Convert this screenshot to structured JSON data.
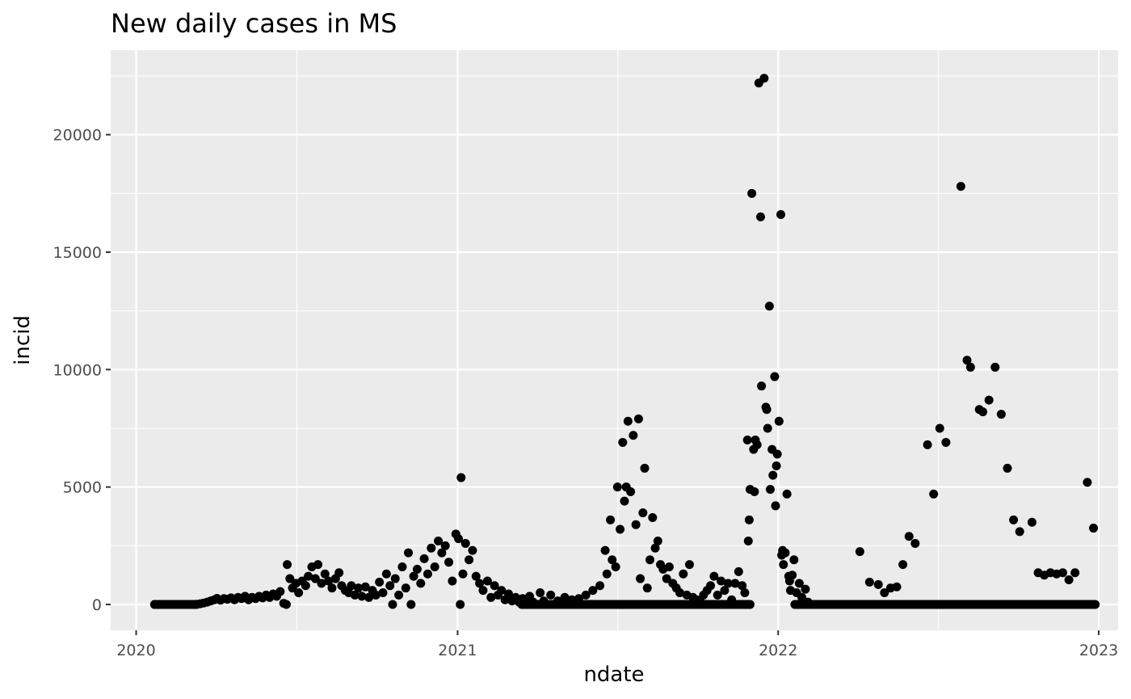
{
  "chart_data": {
    "type": "scatter",
    "title": "New daily cases in MS",
    "xlabel": "ndate",
    "ylabel": "incid",
    "x_axis_type": "date",
    "xlim": [
      "2019-12-03",
      "2023-01-23"
    ],
    "ylim": [
      -1100,
      23600
    ],
    "x_ticks": [
      "2020-01-01",
      "2021-01-01",
      "2022-01-01",
      "2023-01-01"
    ],
    "x_tick_labels": [
      "2020",
      "2021",
      "2022",
      "2023"
    ],
    "y_ticks": [
      0,
      5000,
      10000,
      15000,
      20000
    ],
    "y_tick_labels": [
      "0",
      "5000",
      "10000",
      "15000",
      "20000"
    ],
    "grid": true,
    "background": "#EBEBEB",
    "grid_color": "#FFFFFF",
    "point_color": "#000000",
    "points": [
      [
        "2020-01-22",
        0
      ],
      [
        "2020-01-26",
        0
      ],
      [
        "2020-01-30",
        0
      ],
      [
        "2020-02-03",
        0
      ],
      [
        "2020-02-07",
        0
      ],
      [
        "2020-02-11",
        0
      ],
      [
        "2020-02-15",
        0
      ],
      [
        "2020-02-19",
        0
      ],
      [
        "2020-02-23",
        0
      ],
      [
        "2020-02-27",
        0
      ],
      [
        "2020-03-02",
        0
      ],
      [
        "2020-03-06",
        0
      ],
      [
        "2020-03-10",
        10
      ],
      [
        "2020-03-14",
        30
      ],
      [
        "2020-03-18",
        60
      ],
      [
        "2020-03-22",
        100
      ],
      [
        "2020-03-26",
        150
      ],
      [
        "2020-03-30",
        200
      ],
      [
        "2020-04-02",
        260
      ],
      [
        "2020-04-06",
        180
      ],
      [
        "2020-04-10",
        250
      ],
      [
        "2020-04-14",
        220
      ],
      [
        "2020-04-18",
        280
      ],
      [
        "2020-04-22",
        200
      ],
      [
        "2020-04-26",
        300
      ],
      [
        "2020-04-30",
        250
      ],
      [
        "2020-05-04",
        350
      ],
      [
        "2020-05-08",
        200
      ],
      [
        "2020-05-12",
        300
      ],
      [
        "2020-05-16",
        250
      ],
      [
        "2020-05-20",
        350
      ],
      [
        "2020-05-24",
        280
      ],
      [
        "2020-05-28",
        400
      ],
      [
        "2020-06-01",
        300
      ],
      [
        "2020-06-05",
        450
      ],
      [
        "2020-06-09",
        350
      ],
      [
        "2020-06-13",
        550
      ],
      [
        "2020-06-17",
        50
      ],
      [
        "2020-06-20",
        0
      ],
      [
        "2020-06-21",
        1700
      ],
      [
        "2020-06-24",
        1100
      ],
      [
        "2020-06-27",
        700
      ],
      [
        "2020-07-01",
        900
      ],
      [
        "2020-07-04",
        500
      ],
      [
        "2020-07-08",
        1000
      ],
      [
        "2020-07-12",
        800
      ],
      [
        "2020-07-15",
        1200
      ],
      [
        "2020-07-19",
        1600
      ],
      [
        "2020-07-23",
        1100
      ],
      [
        "2020-07-26",
        1700
      ],
      [
        "2020-07-30",
        900
      ],
      [
        "2020-08-03",
        1300
      ],
      [
        "2020-08-07",
        1000
      ],
      [
        "2020-08-11",
        700
      ],
      [
        "2020-08-15",
        1100
      ],
      [
        "2020-08-19",
        1350
      ],
      [
        "2020-08-22",
        800
      ],
      [
        "2020-08-26",
        600
      ],
      [
        "2020-08-30",
        500
      ],
      [
        "2020-09-02",
        800
      ],
      [
        "2020-09-06",
        400
      ],
      [
        "2020-09-10",
        700
      ],
      [
        "2020-09-14",
        350
      ],
      [
        "2020-09-18",
        750
      ],
      [
        "2020-09-22",
        300
      ],
      [
        "2020-09-26",
        600
      ],
      [
        "2020-09-30",
        400
      ],
      [
        "2020-10-04",
        950
      ],
      [
        "2020-10-08",
        500
      ],
      [
        "2020-10-12",
        1300
      ],
      [
        "2020-10-16",
        800
      ],
      [
        "2020-10-19",
        0
      ],
      [
        "2020-10-22",
        1100
      ],
      [
        "2020-10-26",
        400
      ],
      [
        "2020-10-30",
        1600
      ],
      [
        "2020-11-03",
        700
      ],
      [
        "2020-11-06",
        2200
      ],
      [
        "2020-11-09",
        0
      ],
      [
        "2020-11-12",
        1200
      ],
      [
        "2020-11-16",
        1500
      ],
      [
        "2020-11-20",
        900
      ],
      [
        "2020-11-24",
        1950
      ],
      [
        "2020-11-28",
        1300
      ],
      [
        "2020-12-02",
        2400
      ],
      [
        "2020-12-06",
        1600
      ],
      [
        "2020-12-10",
        2700
      ],
      [
        "2020-12-14",
        2200
      ],
      [
        "2020-12-18",
        2500
      ],
      [
        "2020-12-22",
        1800
      ],
      [
        "2020-12-26",
        1000
      ],
      [
        "2020-12-30",
        3000
      ],
      [
        "2021-01-02",
        2800
      ],
      [
        "2021-01-04",
        0
      ],
      [
        "2021-01-05",
        5400
      ],
      [
        "2021-01-07",
        1300
      ],
      [
        "2021-01-10",
        2600
      ],
      [
        "2021-01-14",
        1900
      ],
      [
        "2021-01-18",
        2300
      ],
      [
        "2021-01-22",
        1200
      ],
      [
        "2021-01-26",
        900
      ],
      [
        "2021-01-30",
        600
      ],
      [
        "2021-02-04",
        1000
      ],
      [
        "2021-02-08",
        300
      ],
      [
        "2021-02-12",
        800
      ],
      [
        "2021-02-16",
        400
      ],
      [
        "2021-02-20",
        600
      ],
      [
        "2021-02-24",
        200
      ],
      [
        "2021-02-28",
        450
      ],
      [
        "2021-03-04",
        150
      ],
      [
        "2021-03-08",
        300
      ],
      [
        "2021-03-12",
        100
      ],
      [
        "2021-03-16",
        250
      ],
      [
        "2021-03-20",
        0
      ],
      [
        "2021-03-24",
        350
      ],
      [
        "2021-03-28",
        100
      ],
      [
        "2021-04-01",
        0
      ],
      [
        "2021-04-05",
        500
      ],
      [
        "2021-04-09",
        150
      ],
      [
        "2021-04-13",
        0
      ],
      [
        "2021-04-17",
        400
      ],
      [
        "2021-04-21",
        0
      ],
      [
        "2021-04-25",
        150
      ],
      [
        "2021-04-29",
        0
      ],
      [
        "2021-05-03",
        300
      ],
      [
        "2021-05-07",
        0
      ],
      [
        "2021-05-11",
        200
      ],
      [
        "2021-05-15",
        0
      ],
      [
        "2021-05-19",
        250
      ],
      [
        "2021-05-23",
        0
      ],
      [
        "2021-05-27",
        400
      ],
      [
        "2021-05-31",
        0
      ],
      [
        "2021-06-04",
        600
      ],
      [
        "2021-06-08",
        0
      ],
      [
        "2021-06-12",
        800
      ],
      [
        "2021-06-16",
        0
      ],
      [
        "2021-06-18",
        2300
      ],
      [
        "2021-06-20",
        1300
      ],
      [
        "2021-06-24",
        3600
      ],
      [
        "2021-06-26",
        1900
      ],
      [
        "2021-06-30",
        1600
      ],
      [
        "2021-07-02",
        5000
      ],
      [
        "2021-07-05",
        3200
      ],
      [
        "2021-07-08",
        6900
      ],
      [
        "2021-07-10",
        4400
      ],
      [
        "2021-07-12",
        5000
      ],
      [
        "2021-07-14",
        7800
      ],
      [
        "2021-07-17",
        4800
      ],
      [
        "2021-07-20",
        7200
      ],
      [
        "2021-07-23",
        3400
      ],
      [
        "2021-07-26",
        7900
      ],
      [
        "2021-07-28",
        1100
      ],
      [
        "2021-07-31",
        3900
      ],
      [
        "2021-08-02",
        5800
      ],
      [
        "2021-08-05",
        700
      ],
      [
        "2021-08-08",
        1900
      ],
      [
        "2021-08-11",
        3700
      ],
      [
        "2021-08-14",
        2400
      ],
      [
        "2021-08-17",
        2700
      ],
      [
        "2021-08-20",
        1700
      ],
      [
        "2021-08-23",
        1500
      ],
      [
        "2021-08-27",
        1100
      ],
      [
        "2021-08-30",
        1600
      ],
      [
        "2021-09-03",
        900
      ],
      [
        "2021-09-07",
        700
      ],
      [
        "2021-09-11",
        500
      ],
      [
        "2021-09-15",
        1300
      ],
      [
        "2021-09-19",
        400
      ],
      [
        "2021-09-22",
        1700
      ],
      [
        "2021-09-26",
        300
      ],
      [
        "2021-09-30",
        200
      ],
      [
        "2021-10-04",
        150
      ],
      [
        "2021-10-08",
        400
      ],
      [
        "2021-10-12",
        600
      ],
      [
        "2021-10-16",
        800
      ],
      [
        "2021-10-20",
        1200
      ],
      [
        "2021-10-24",
        400
      ],
      [
        "2021-10-28",
        1000
      ],
      [
        "2021-11-01",
        600
      ],
      [
        "2021-11-05",
        900
      ],
      [
        "2021-11-09",
        200
      ],
      [
        "2021-11-13",
        900
      ],
      [
        "2021-11-17",
        1400
      ],
      [
        "2021-11-21",
        800
      ],
      [
        "2021-11-24",
        500
      ],
      [
        "2021-11-27",
        7000
      ],
      [
        "2021-11-28",
        2700
      ],
      [
        "2021-11-29",
        3600
      ],
      [
        "2021-11-30",
        4900
      ],
      [
        "2021-12-02",
        17500
      ],
      [
        "2021-12-04",
        6600
      ],
      [
        "2021-12-05",
        4800
      ],
      [
        "2021-12-06",
        7000
      ],
      [
        "2021-12-08",
        6800
      ],
      [
        "2021-12-10",
        22200
      ],
      [
        "2021-12-12",
        16500
      ],
      [
        "2021-12-13",
        9300
      ],
      [
        "2021-12-16",
        22400
      ],
      [
        "2021-12-18",
        8400
      ],
      [
        "2021-12-19",
        8300
      ],
      [
        "2021-12-20",
        7500
      ],
      [
        "2021-12-22",
        12700
      ],
      [
        "2021-12-23",
        4900
      ],
      [
        "2021-12-25",
        6600
      ],
      [
        "2021-12-26",
        5500
      ],
      [
        "2021-12-28",
        9700
      ],
      [
        "2021-12-29",
        4200
      ],
      [
        "2021-12-30",
        5900
      ],
      [
        "2021-12-31",
        6400
      ],
      [
        "2022-01-02",
        7800
      ],
      [
        "2022-01-04",
        16600
      ],
      [
        "2022-01-05",
        2100
      ],
      [
        "2022-01-06",
        2300
      ],
      [
        "2022-01-07",
        1700
      ],
      [
        "2022-01-09",
        2200
      ],
      [
        "2022-01-11",
        4700
      ],
      [
        "2022-01-13",
        1200
      ],
      [
        "2022-01-14",
        1000
      ],
      [
        "2022-01-15",
        600
      ],
      [
        "2022-01-17",
        1250
      ],
      [
        "2022-01-19",
        1900
      ],
      [
        "2022-01-22",
        500
      ],
      [
        "2022-01-25",
        900
      ],
      [
        "2022-01-28",
        300
      ],
      [
        "2022-02-01",
        650
      ],
      [
        "2022-02-04",
        100
      ],
      [
        "2022-02-15",
        0
      ],
      [
        "2022-03-01",
        0
      ],
      [
        "2022-03-15",
        0
      ],
      [
        "2022-04-04",
        2250
      ],
      [
        "2022-04-15",
        950
      ],
      [
        "2022-04-25",
        850
      ],
      [
        "2022-05-02",
        500
      ],
      [
        "2022-05-09",
        700
      ],
      [
        "2022-05-16",
        750
      ],
      [
        "2022-05-23",
        1700
      ],
      [
        "2022-05-30",
        2900
      ],
      [
        "2022-06-06",
        2600
      ],
      [
        "2022-06-20",
        6800
      ],
      [
        "2022-06-27",
        4700
      ],
      [
        "2022-07-04",
        7500
      ],
      [
        "2022-07-11",
        6900
      ],
      [
        "2022-07-28",
        17800
      ],
      [
        "2022-08-04",
        10400
      ],
      [
        "2022-08-08",
        10100
      ],
      [
        "2022-08-18",
        8300
      ],
      [
        "2022-08-22",
        8200
      ],
      [
        "2022-08-29",
        8700
      ],
      [
        "2022-09-05",
        10100
      ],
      [
        "2022-09-12",
        8100
      ],
      [
        "2022-09-19",
        5800
      ],
      [
        "2022-09-26",
        3600
      ],
      [
        "2022-10-03",
        3100
      ],
      [
        "2022-10-17",
        3500
      ],
      [
        "2022-10-24",
        1350
      ],
      [
        "2022-10-31",
        1250
      ],
      [
        "2022-11-07",
        1350
      ],
      [
        "2022-11-14",
        1300
      ],
      [
        "2022-11-21",
        1350
      ],
      [
        "2022-11-28",
        1050
      ],
      [
        "2022-12-05",
        1350
      ],
      [
        "2022-12-12",
        0
      ],
      [
        "2022-12-19",
        5200
      ],
      [
        "2022-12-23",
        0
      ],
      [
        "2022-12-26",
        3250
      ]
    ],
    "zero_baseline_range": [
      [
        "2020-01-22",
        "2020-03-10"
      ],
      [
        "2021-03-15",
        "2021-11-30"
      ],
      [
        "2022-01-20",
        "2022-12-28"
      ]
    ]
  }
}
